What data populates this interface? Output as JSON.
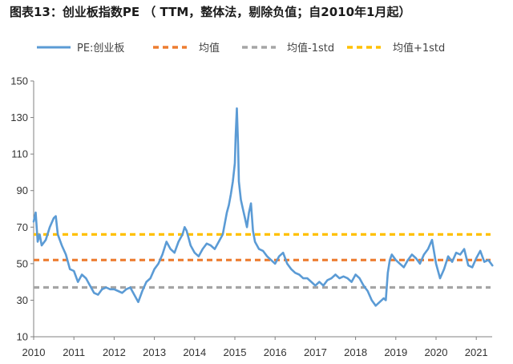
{
  "chart_data": {
    "type": "line",
    "title": "图表13：创业板指数PE （ TTM，整体法，剔除负值；自2010年1月起）",
    "xlabel": "",
    "ylabel": "",
    "x_tick_labels": [
      "2010",
      "2011",
      "2012",
      "2013",
      "2014",
      "2015",
      "2016",
      "2017",
      "2018",
      "2019",
      "2020",
      "2021"
    ],
    "y_tick_labels": [
      "10",
      "30",
      "50",
      "70",
      "90",
      "110",
      "130",
      "150"
    ],
    "xlim": [
      2010.0,
      2021.4
    ],
    "ylim": [
      10,
      150
    ],
    "grid": false,
    "legend_position": "top",
    "series": [
      {
        "name": "PE:创业板",
        "style": "solid",
        "color": "#5B9BD5",
        "x": [
          2010.0,
          2010.05,
          2010.1,
          2010.15,
          2010.2,
          2010.3,
          2010.4,
          2010.5,
          2010.55,
          2010.6,
          2010.7,
          2010.8,
          2010.9,
          2011.0,
          2011.1,
          2011.2,
          2011.3,
          2011.4,
          2011.5,
          2011.6,
          2011.7,
          2011.8,
          2011.9,
          2012.0,
          2012.1,
          2012.2,
          2012.3,
          2012.4,
          2012.5,
          2012.6,
          2012.7,
          2012.8,
          2012.9,
          2013.0,
          2013.1,
          2013.2,
          2013.3,
          2013.4,
          2013.5,
          2013.6,
          2013.7,
          2013.75,
          2013.8,
          2013.9,
          2014.0,
          2014.1,
          2014.2,
          2014.3,
          2014.4,
          2014.5,
          2014.6,
          2014.7,
          2014.8,
          2014.85,
          2014.9,
          2014.95,
          2015.0,
          2015.02,
          2015.05,
          2015.08,
          2015.1,
          2015.15,
          2015.2,
          2015.25,
          2015.3,
          2015.35,
          2015.4,
          2015.45,
          2015.5,
          2015.6,
          2015.7,
          2015.8,
          2015.9,
          2016.0,
          2016.1,
          2016.2,
          2016.3,
          2016.4,
          2016.5,
          2016.6,
          2016.7,
          2016.8,
          2016.9,
          2017.0,
          2017.1,
          2017.2,
          2017.3,
          2017.4,
          2017.5,
          2017.6,
          2017.7,
          2017.8,
          2017.9,
          2018.0,
          2018.1,
          2018.2,
          2018.3,
          2018.4,
          2018.5,
          2018.6,
          2018.7,
          2018.75,
          2018.8,
          2018.85,
          2018.9,
          2019.0,
          2019.1,
          2019.2,
          2019.3,
          2019.4,
          2019.5,
          2019.6,
          2019.7,
          2019.8,
          2019.9,
          2020.0,
          2020.1,
          2020.2,
          2020.3,
          2020.4,
          2020.5,
          2020.6,
          2020.7,
          2020.8,
          2020.9,
          2021.0,
          2021.1,
          2021.2,
          2021.3,
          2021.4
        ],
        "values": [
          73,
          78,
          62,
          66,
          60,
          63,
          70,
          75,
          76,
          66,
          60,
          55,
          47,
          46,
          40,
          44,
          42,
          38,
          34,
          33,
          36,
          37,
          36,
          36,
          35,
          34,
          36,
          37,
          33,
          29,
          35,
          40,
          42,
          47,
          50,
          55,
          62,
          58,
          56,
          62,
          66,
          70,
          68,
          60,
          56,
          54,
          58,
          61,
          60,
          58,
          62,
          66,
          78,
          82,
          88,
          95,
          105,
          120,
          135,
          115,
          95,
          85,
          80,
          75,
          70,
          78,
          83,
          68,
          62,
          58,
          57,
          54,
          52,
          50,
          54,
          56,
          50,
          47,
          45,
          44,
          42,
          42,
          40,
          38,
          40,
          38,
          41,
          42,
          44,
          42,
          43,
          42,
          40,
          44,
          42,
          38,
          35,
          30,
          27,
          29,
          31,
          30,
          45,
          52,
          55,
          52,
          50,
          48,
          52,
          55,
          53,
          50,
          55,
          58,
          63,
          50,
          42,
          47,
          54,
          51,
          56,
          55,
          58,
          49,
          48,
          53,
          57,
          51,
          52,
          49
        ]
      },
      {
        "name": "均值",
        "style": "dashed",
        "color": "#ED7D31",
        "x": [
          2010.0,
          2021.4
        ],
        "values": [
          52,
          52
        ]
      },
      {
        "name": "均值-1std",
        "style": "dashed",
        "color": "#A5A5A5",
        "x": [
          2010.0,
          2021.4
        ],
        "values": [
          37,
          37
        ]
      },
      {
        "name": "均值+1std",
        "style": "dashed",
        "color": "#FFC000",
        "x": [
          2010.0,
          2021.4
        ],
        "values": [
          66,
          66
        ]
      }
    ]
  }
}
